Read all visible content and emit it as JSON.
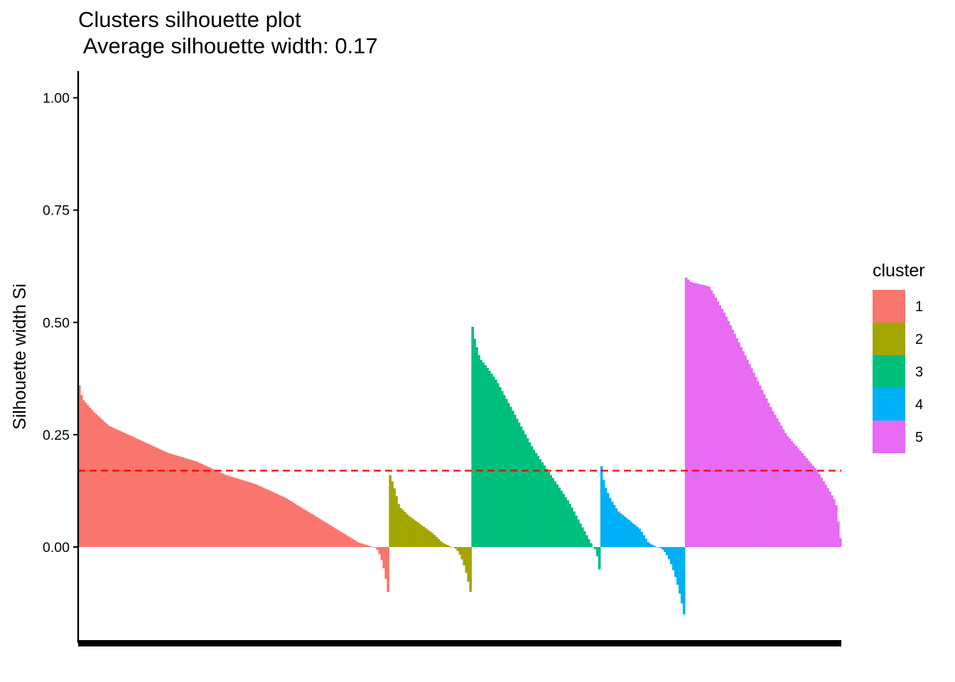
{
  "chart_data": {
    "type": "bar",
    "title": "Clusters silhouette plot",
    "subtitle": " Average silhouette width: 0.17",
    "xlabel": "",
    "ylabel": "Silhouette width Si",
    "ylim": [
      -0.2,
      1.05
    ],
    "y_ticks": [
      0.0,
      0.25,
      0.5,
      0.75,
      1.0
    ],
    "y_tick_labels": [
      "0.00",
      "0.25",
      "0.50",
      "0.75",
      "1.00"
    ],
    "average_silhouette_width": 0.17,
    "reference_line": {
      "value": 0.17,
      "color": "#FF0000",
      "style": "dashed"
    },
    "grid": false,
    "legend": {
      "title": "cluster",
      "position": "right"
    },
    "clusters": [
      {
        "name": "1",
        "color": "#F8766D",
        "n": 140,
        "profile": [
          [
            0,
            0.36
          ],
          [
            0.01,
            0.33
          ],
          [
            0.05,
            0.3
          ],
          [
            0.1,
            0.27
          ],
          [
            0.2,
            0.24
          ],
          [
            0.3,
            0.21
          ],
          [
            0.4,
            0.19
          ],
          [
            0.5,
            0.16
          ],
          [
            0.6,
            0.14
          ],
          [
            0.7,
            0.11
          ],
          [
            0.8,
            0.07
          ],
          [
            0.9,
            0.03
          ],
          [
            0.95,
            0.01
          ],
          [
            1.0,
            0.0
          ]
        ],
        "negatives": {
          "n": 7,
          "min": -0.1
        }
      },
      {
        "name": "2",
        "color": "#A3A500",
        "n": 30,
        "profile": [
          [
            0,
            0.16
          ],
          [
            0.05,
            0.14
          ],
          [
            0.15,
            0.09
          ],
          [
            0.3,
            0.07
          ],
          [
            0.5,
            0.05
          ],
          [
            0.7,
            0.03
          ],
          [
            0.85,
            0.01
          ],
          [
            1.0,
            0.0
          ]
        ],
        "negatives": {
          "n": 9,
          "min": -0.1
        }
      },
      {
        "name": "3",
        "color": "#00BF7D",
        "n": 58,
        "profile": [
          [
            0,
            0.49
          ],
          [
            0.02,
            0.46
          ],
          [
            0.06,
            0.42
          ],
          [
            0.12,
            0.4
          ],
          [
            0.2,
            0.37
          ],
          [
            0.3,
            0.32
          ],
          [
            0.4,
            0.27
          ],
          [
            0.5,
            0.22
          ],
          [
            0.6,
            0.18
          ],
          [
            0.7,
            0.14
          ],
          [
            0.8,
            0.1
          ],
          [
            0.9,
            0.05
          ],
          [
            1.0,
            0.0
          ]
        ],
        "negatives": {
          "n": 3,
          "min": -0.05
        }
      },
      {
        "name": "4",
        "color": "#00B0F6",
        "n": 27,
        "profile": [
          [
            0,
            0.18
          ],
          [
            0.05,
            0.14
          ],
          [
            0.15,
            0.11
          ],
          [
            0.3,
            0.08
          ],
          [
            0.5,
            0.06
          ],
          [
            0.7,
            0.04
          ],
          [
            0.85,
            0.01
          ],
          [
            1.0,
            0.0
          ]
        ],
        "negatives": {
          "n": 13,
          "min": -0.15
        }
      },
      {
        "name": "5",
        "color": "#E76BF3",
        "n": 74,
        "profile": [
          [
            0,
            0.6
          ],
          [
            0.03,
            0.59
          ],
          [
            0.15,
            0.58
          ],
          [
            0.25,
            0.52
          ],
          [
            0.35,
            0.45
          ],
          [
            0.45,
            0.38
          ],
          [
            0.55,
            0.31
          ],
          [
            0.65,
            0.25
          ],
          [
            0.75,
            0.21
          ],
          [
            0.85,
            0.17
          ],
          [
            0.92,
            0.13
          ],
          [
            0.97,
            0.1
          ],
          [
            1.0,
            0.02
          ]
        ],
        "negatives": {
          "n": 0,
          "min": 0
        }
      }
    ]
  }
}
